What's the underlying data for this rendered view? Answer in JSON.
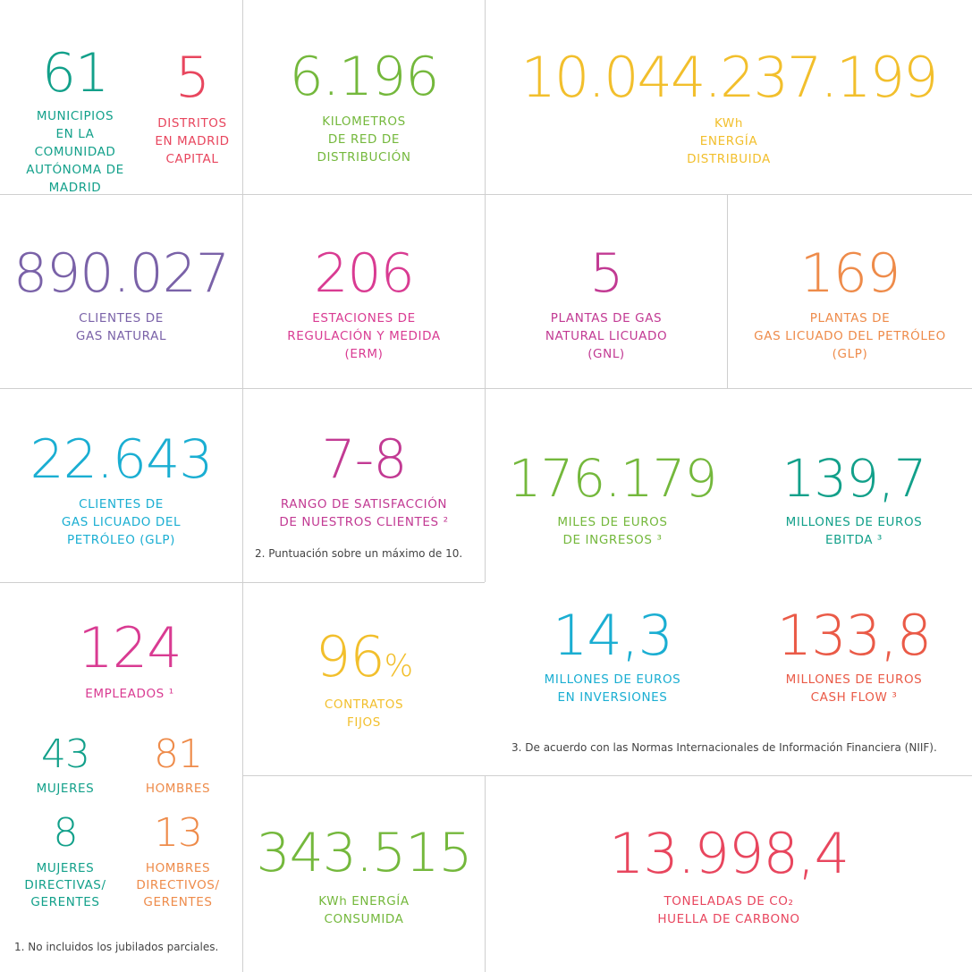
{
  "colors": {
    "teal": "#12a08a",
    "red": "#e8465e",
    "green": "#74b83c",
    "yellow": "#f2bf2c",
    "purple": "#7a62a8",
    "magenta": "#d93b92",
    "orange": "#ee8b4a",
    "cyan": "#1aaed2",
    "violet": "#c23a93",
    "coral": "#ea5a47",
    "grid": "#cfcfcf"
  },
  "stats": {
    "municipios": {
      "value": "61",
      "label": "MUNICIPIOS\nEN LA COMUNIDAD\nAUTÓNOMA DE\nMADRID"
    },
    "distritos": {
      "value": "5",
      "label": "DISTRITOS\nEN MADRID\nCAPITAL"
    },
    "kilometros": {
      "value": "6.196",
      "label": "KILOMETROS\nDE RED DE\nDISTRIBUCIÓN"
    },
    "kwh_distribuida": {
      "value": "10.044.237.199",
      "label": "KWh\nENERGÍA\nDISTRIBUIDA"
    },
    "clientes_gas": {
      "value": "890.027",
      "label": "CLIENTES DE\nGAS NATURAL"
    },
    "erm": {
      "value": "206",
      "label": "ESTACIONES DE\nREGULACIÓN Y MEDIDA\n(ERM)"
    },
    "gnl": {
      "value": "5",
      "label": "PLANTAS DE GAS\nNATURAL LICUADO\n(GNL)"
    },
    "glp_plantas": {
      "value": "169",
      "label": "PLANTAS DE\nGAS LICUADO DEL PETRÓLEO\n(GLP)"
    },
    "clientes_glp": {
      "value": "22.643",
      "label": "CLIENTES DE\nGAS LICUADO DEL\nPETRÓLEO (GLP)"
    },
    "satisfaccion": {
      "value": "7-8",
      "label": "RANGO DE SATISFACCIÓN\nDE NUESTROS CLIENTES ²"
    },
    "ingresos": {
      "value": "176.179",
      "label": "MILES DE EUROS\nDE INGRESOS ³"
    },
    "ebitda": {
      "value": "139,7",
      "label": "MILLONES DE EUROS\nEBITDA ³"
    },
    "empleados": {
      "value": "124",
      "label": "EMPLEADOS ¹"
    },
    "mujeres": {
      "value": "43",
      "label": "MUJERES"
    },
    "hombres": {
      "value": "81",
      "label": "HOMBRES"
    },
    "mujeres_dir": {
      "value": "8",
      "label": "MUJERES\nDIRECTIVAS/\nGERENTES"
    },
    "hombres_dir": {
      "value": "13",
      "label": "HOMBRES\nDIRECTIVOS/\nGERENTES"
    },
    "contratos": {
      "value": "96",
      "unit": "%",
      "label": "CONTRATOS\nFIJOS"
    },
    "inversiones": {
      "value": "14,3",
      "label": "MILLONES DE EUROS\nEN INVERSIONES"
    },
    "cashflow": {
      "value": "133,8",
      "label": "MILLONES DE EUROS\nCASH FLOW ³"
    },
    "kwh_consumida": {
      "value": "343.515",
      "label": "KWh ENERGÍA\nCONSUMIDA"
    },
    "co2": {
      "value": "13.998,4",
      "label": "TONELADAS DE CO₂\nHUELLA DE CARBONO"
    }
  },
  "notes": {
    "note2": "2.  Puntuación sobre un máximo de 10.",
    "note3": "3.  De acuerdo con las Normas Internacionales de Información Financiera (NIIF).",
    "note1": "1.  No incluidos los jubilados parciales."
  }
}
